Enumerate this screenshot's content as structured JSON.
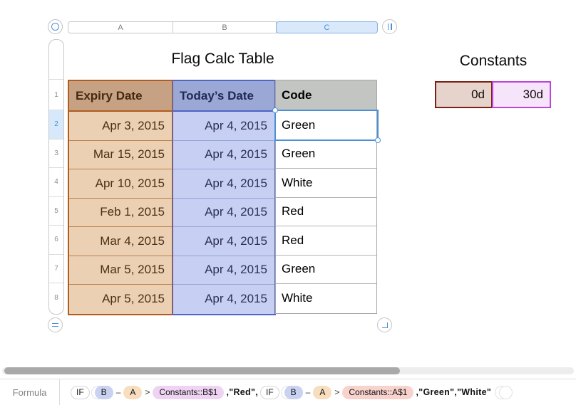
{
  "sheet": {
    "column_headers": [
      "A",
      "B",
      "C"
    ],
    "selected_column": "C",
    "row_numbers": [
      "1",
      "2",
      "3",
      "4",
      "5",
      "6",
      "7",
      "8"
    ],
    "selected_row": "2"
  },
  "flag_table": {
    "title": "Flag Calc Table",
    "headers": [
      "Expiry Date",
      "Today’s Date",
      "Code"
    ],
    "rows": [
      {
        "expiry": "Apr 3, 2015",
        "today": "Apr 4, 2015",
        "code": "Green"
      },
      {
        "expiry": "Mar 15, 2015",
        "today": "Apr 4, 2015",
        "code": "Green"
      },
      {
        "expiry": "Apr 10, 2015",
        "today": "Apr 4, 2015",
        "code": "White"
      },
      {
        "expiry": "Feb 1, 2015",
        "today": "Apr 4, 2015",
        "code": "Red"
      },
      {
        "expiry": "Mar 4, 2015",
        "today": "Apr 4, 2015",
        "code": "Red"
      },
      {
        "expiry": "Mar 5, 2015",
        "today": "Apr 4, 2015",
        "code": "Green"
      },
      {
        "expiry": "Apr 5, 2015",
        "today": "Apr 4, 2015",
        "code": "White"
      }
    ]
  },
  "constants_table": {
    "title": "Constants",
    "cells": [
      "0d",
      "30d"
    ]
  },
  "formula": {
    "label": "Formula",
    "tokens": [
      {
        "kind": "function",
        "text": "IF"
      },
      {
        "kind": "paren-open",
        "text": "("
      },
      {
        "kind": "column-ref",
        "text": "B"
      },
      {
        "kind": "operator",
        "text": "–"
      },
      {
        "kind": "column-ref",
        "text": "A"
      },
      {
        "kind": "operator",
        "text": ">"
      },
      {
        "kind": "cell-ref",
        "text": "Constants::B$1"
      },
      {
        "kind": "literal",
        "text": ",\"Red\","
      },
      {
        "kind": "function",
        "text": "IF"
      },
      {
        "kind": "paren-open",
        "text": "("
      },
      {
        "kind": "column-ref",
        "text": "B"
      },
      {
        "kind": "operator",
        "text": "–"
      },
      {
        "kind": "column-ref",
        "text": "A"
      },
      {
        "kind": "operator",
        "text": ">"
      },
      {
        "kind": "cell-ref",
        "text": "Constants::A$1"
      },
      {
        "kind": "literal",
        "text": ",\"Green\",\"White\""
      },
      {
        "kind": "paren-close",
        "text": ")"
      },
      {
        "kind": "paren-close",
        "text": ")"
      }
    ]
  },
  "colors": {
    "accent_blue": "#4a90d9",
    "expiry_header_bg": "#c6a183",
    "expiry_cell_bg": "#ecd0b4",
    "expiry_border": "#b15c1e",
    "today_header_bg": "#9ba7d5",
    "today_cell_bg": "#c7d0f2",
    "today_border": "#4e66c6",
    "code_header_bg": "#c2c5c1",
    "constants_0d_bg": "#e5d3cc",
    "constants_0d_border": "#7b2015",
    "constants_30d_bg": "#f6e4fb",
    "constants_30d_border": "#bd44d9"
  }
}
